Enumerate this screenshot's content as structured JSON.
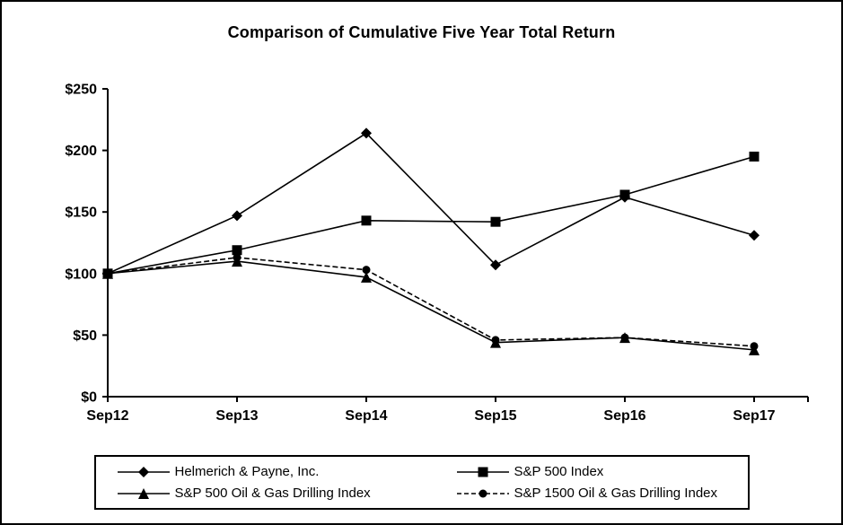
{
  "figure": {
    "title": "Comparison of Cumulative Five Year Total Return"
  },
  "chart_data": {
    "type": "line",
    "title": "Comparison of Cumulative Five Year Total Return",
    "categories": [
      "Sep12",
      "Sep13",
      "Sep14",
      "Sep15",
      "Sep16",
      "Sep17"
    ],
    "y_ticks": [
      "$0",
      "$50",
      "$100",
      "$150",
      "$200",
      "$250"
    ],
    "ylim": [
      0,
      250
    ],
    "y_tick_step": 50,
    "y_tick_prefix": "$",
    "grid": false,
    "legend_position": "bottom",
    "series": [
      {
        "name": "Helmerich & Payne, Inc.",
        "marker": "diamond",
        "line_style": "solid",
        "values": [
          100,
          147,
          214,
          107,
          162,
          131
        ]
      },
      {
        "name": "S&P 500 Index",
        "marker": "square",
        "line_style": "solid",
        "values": [
          100,
          119,
          143,
          142,
          164,
          195
        ]
      },
      {
        "name": "S&P 500 Oil & Gas Drilling Index",
        "marker": "triangle",
        "line_style": "solid",
        "values": [
          100,
          110,
          97,
          44,
          48,
          38
        ]
      },
      {
        "name": "S&P 1500 Oil & Gas Drilling Index",
        "marker": "circle",
        "line_style": "dashed",
        "values": [
          100,
          113,
          103,
          46,
          48,
          41
        ]
      }
    ],
    "colors": {
      "line": "#000000",
      "background": "#ffffff",
      "border": "#000000"
    }
  }
}
